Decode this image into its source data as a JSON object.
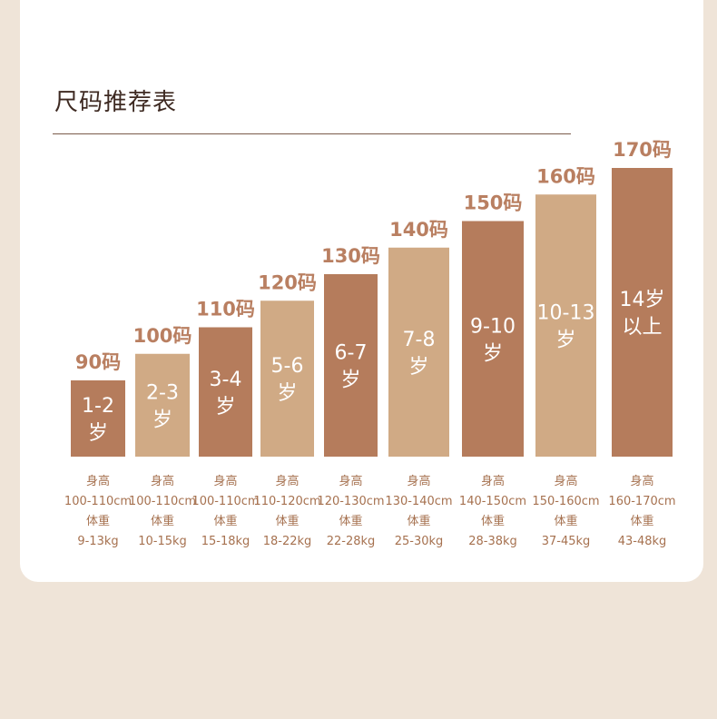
{
  "page": {
    "title": "尺码推荐表",
    "colors": {
      "dark": "#b57c5c",
      "light": "#d0aa85",
      "label": "#b97f61",
      "inner_text": "#ffffff"
    }
  },
  "chart_data": {
    "type": "bar",
    "title": "尺码推荐表",
    "categories": [
      "90码",
      "100码",
      "110码",
      "120码",
      "130码",
      "140码",
      "150码",
      "160码",
      "170码"
    ],
    "values": [
      90,
      100,
      110,
      120,
      130,
      140,
      150,
      160,
      170
    ],
    "ylim": [
      0,
      170
    ],
    "age": [
      "1-2岁",
      "2-3岁",
      "3-4岁",
      "5-6岁",
      "6-7岁",
      "7-8岁",
      "9-10岁",
      "10-13岁",
      "14岁以上"
    ],
    "height_label": "身高",
    "weight_label": "体重",
    "heights": [
      "100-110cm",
      "100-110cm",
      "100-110cm",
      "110-120cm",
      "120-130cm",
      "130-140cm",
      "140-150cm",
      "150-160cm",
      "160-170cm"
    ],
    "weights": [
      "9-13kg",
      "10-15kg",
      "15-18kg",
      "18-22kg",
      "22-28kg",
      "25-30kg",
      "28-38kg",
      "37-45kg",
      "43-48kg"
    ],
    "bar_colors": [
      "dark",
      "light",
      "dark",
      "light",
      "dark",
      "light",
      "dark",
      "light",
      "dark"
    ],
    "grid": false,
    "legend": "none"
  }
}
